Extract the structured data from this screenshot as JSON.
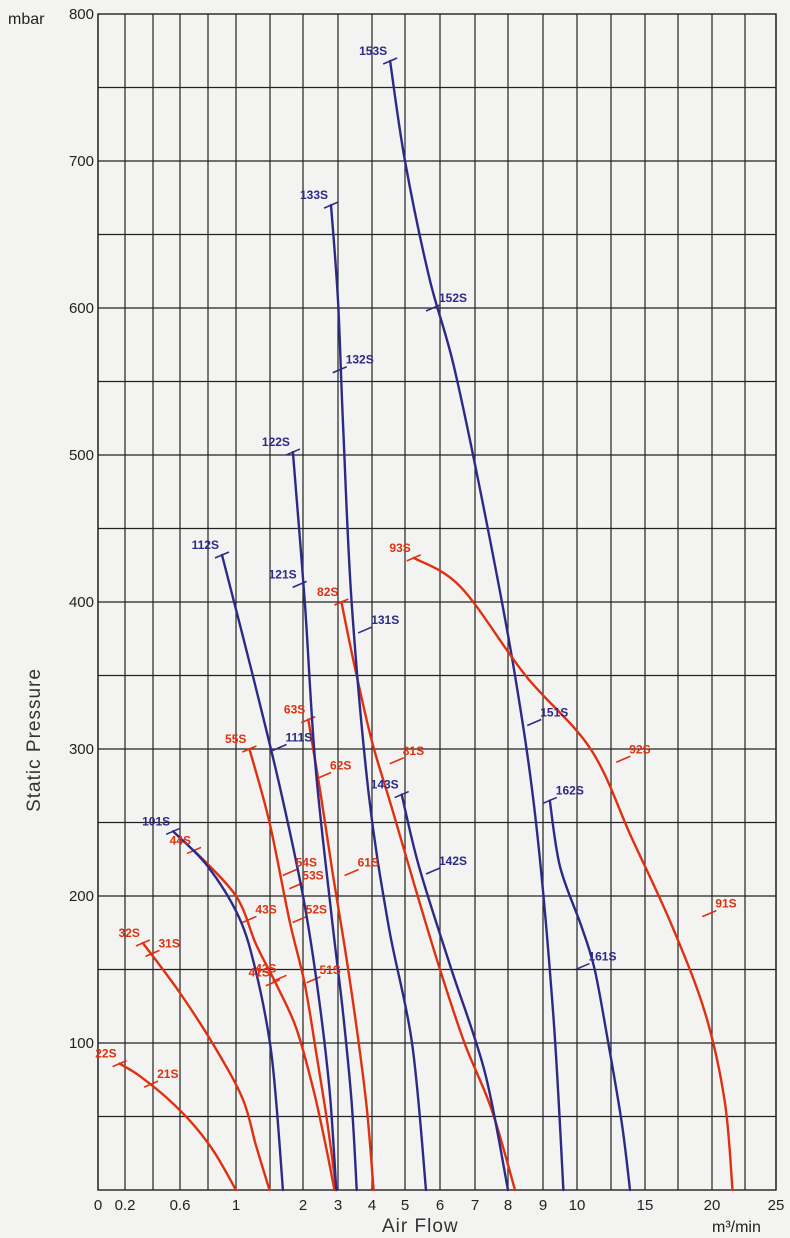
{
  "chart_data": {
    "type": "line",
    "title": "",
    "xlabel": "Air Flow",
    "ylabel": "Static Pressure",
    "y_unit": "mbar",
    "x_unit": "m³/min",
    "ylim": [
      0,
      800
    ],
    "x_scale": "piecewise",
    "x_ticks": [
      "0",
      "0.2",
      "0.6",
      "1",
      "2",
      "3",
      "4",
      "5",
      "6",
      "7",
      "8",
      "9",
      "10",
      "15",
      "20",
      "25"
    ],
    "y_ticks": [
      "100",
      "200",
      "300",
      "400",
      "500",
      "600",
      "700",
      "800"
    ],
    "grid": true,
    "colors": {
      "blue_series": "#2c2a86",
      "red_series": "#e03010",
      "grid": "#222222",
      "background": "#f3f3f1"
    },
    "series": [
      {
        "name": "22S",
        "color": "red",
        "points": [
          [
            0.16,
            86
          ],
          [
            0.3,
            78
          ],
          [
            0.5,
            63
          ],
          [
            0.7,
            44
          ],
          [
            0.85,
            25
          ],
          [
            1.0,
            0
          ]
        ]
      },
      {
        "name": "21S",
        "color": "red",
        "points": [
          [
            0.39,
            72
          ]
        ]
      },
      {
        "name": "32S",
        "color": "red",
        "points": [
          [
            0.33,
            168
          ],
          [
            0.6,
            134
          ],
          [
            0.85,
            97
          ],
          [
            1.1,
            62
          ],
          [
            1.3,
            30
          ],
          [
            1.5,
            0
          ]
        ]
      },
      {
        "name": "31S",
        "color": "red",
        "points": [
          [
            0.4,
            161
          ]
        ]
      },
      {
        "name": "44S",
        "color": "red",
        "points": [
          [
            0.7,
            231
          ],
          [
            1.0,
            200
          ],
          [
            1.3,
            167
          ],
          [
            1.6,
            140
          ],
          [
            1.9,
            110
          ],
          [
            2.3,
            68
          ],
          [
            2.65,
            30
          ],
          [
            2.9,
            0
          ]
        ]
      },
      {
        "name": "43S",
        "color": "red",
        "points": [
          [
            1.2,
            184
          ]
        ]
      },
      {
        "name": "42S",
        "color": "red",
        "points": [
          [
            1.65,
            144
          ]
        ]
      },
      {
        "name": "41S",
        "color": "red",
        "points": [
          [
            1.55,
            141
          ]
        ]
      },
      {
        "name": "101S",
        "color": "blue",
        "points": [
          [
            0.55,
            244
          ],
          [
            0.8,
            220
          ],
          [
            1.05,
            185
          ],
          [
            1.3,
            148
          ],
          [
            1.5,
            102
          ],
          [
            1.6,
            60
          ],
          [
            1.7,
            0
          ]
        ]
      },
      {
        "name": "55S",
        "color": "red",
        "points": [
          [
            1.2,
            300
          ],
          [
            1.5,
            250
          ],
          [
            1.8,
            183
          ],
          [
            2.05,
            140
          ],
          [
            2.4,
            90
          ],
          [
            2.7,
            45
          ],
          [
            2.95,
            0
          ]
        ]
      },
      {
        "name": "54S",
        "color": "red",
        "points": [
          [
            1.8,
            216
          ]
        ]
      },
      {
        "name": "53S",
        "color": "red",
        "points": [
          [
            1.9,
            207
          ]
        ]
      },
      {
        "name": "52S",
        "color": "red",
        "points": [
          [
            1.95,
            184
          ]
        ]
      },
      {
        "name": "51S",
        "color": "red",
        "points": [
          [
            2.3,
            143
          ]
        ]
      },
      {
        "name": "112S",
        "color": "blue",
        "points": [
          [
            0.9,
            432
          ],
          [
            1.25,
            350
          ],
          [
            1.65,
            275
          ],
          [
            2.0,
            200
          ],
          [
            2.4,
            140
          ],
          [
            2.75,
            70
          ],
          [
            2.95,
            0
          ]
        ]
      },
      {
        "name": "111S",
        "color": "blue",
        "points": [
          [
            1.65,
            301
          ]
        ]
      },
      {
        "name": "63S",
        "color": "red",
        "points": [
          [
            2.15,
            320
          ],
          [
            2.5,
            270
          ],
          [
            2.85,
            215
          ],
          [
            3.2,
            165
          ],
          [
            3.55,
            110
          ],
          [
            3.85,
            55
          ],
          [
            4.05,
            0
          ]
        ]
      },
      {
        "name": "62S",
        "color": "red",
        "points": [
          [
            2.6,
            282
          ]
        ]
      },
      {
        "name": "61S",
        "color": "red",
        "points": [
          [
            3.4,
            216
          ]
        ]
      },
      {
        "name": "122S",
        "color": "blue",
        "points": [
          [
            1.85,
            502
          ],
          [
            2.05,
            400
          ],
          [
            2.35,
            290
          ],
          [
            2.8,
            190
          ],
          [
            3.15,
            120
          ],
          [
            3.4,
            60
          ],
          [
            3.55,
            0
          ]
        ]
      },
      {
        "name": "121S",
        "color": "blue",
        "points": [
          [
            1.95,
            412
          ]
        ]
      },
      {
        "name": "82S",
        "color": "red",
        "points": [
          [
            3.1,
            400
          ],
          [
            3.5,
            355
          ],
          [
            4.0,
            305
          ],
          [
            4.6,
            260
          ],
          [
            5.3,
            205
          ],
          [
            6.0,
            150
          ],
          [
            6.7,
            100
          ],
          [
            7.5,
            55
          ],
          [
            8.2,
            0
          ]
        ]
      },
      {
        "name": "81S",
        "color": "red",
        "points": [
          [
            4.75,
            292
          ]
        ]
      },
      {
        "name": "133S",
        "color": "blue",
        "points": [
          [
            2.8,
            670
          ],
          [
            3.0,
            605
          ],
          [
            3.15,
            520
          ],
          [
            3.4,
            400
          ],
          [
            3.9,
            270
          ],
          [
            4.5,
            180
          ],
          [
            5.2,
            100
          ],
          [
            5.6,
            0
          ]
        ]
      },
      {
        "name": "132S",
        "color": "blue",
        "points": [
          [
            3.05,
            558
          ]
        ]
      },
      {
        "name": "131S",
        "color": "blue",
        "points": [
          [
            3.8,
            381
          ]
        ]
      },
      {
        "name": "143S",
        "color": "blue",
        "points": [
          [
            4.9,
            269
          ],
          [
            5.4,
            220
          ],
          [
            6.3,
            152
          ],
          [
            7.3,
            80
          ],
          [
            8.0,
            0
          ]
        ]
      },
      {
        "name": "142S",
        "color": "blue",
        "points": [
          [
            5.8,
            217
          ]
        ]
      },
      {
        "name": "153S",
        "color": "blue",
        "points": [
          [
            4.55,
            768
          ],
          [
            5.0,
            700
          ],
          [
            5.7,
            620
          ],
          [
            6.4,
            560
          ],
          [
            7.3,
            460
          ],
          [
            8.2,
            350
          ],
          [
            8.8,
            250
          ],
          [
            9.3,
            120
          ],
          [
            9.6,
            0
          ]
        ]
      },
      {
        "name": "152S",
        "color": "blue",
        "points": [
          [
            5.8,
            600
          ]
        ]
      },
      {
        "name": "151S",
        "color": "blue",
        "points": [
          [
            8.75,
            318
          ]
        ]
      },
      {
        "name": "93S",
        "color": "red",
        "points": [
          [
            5.25,
            430
          ],
          [
            6.6,
            410
          ],
          [
            8.5,
            350
          ],
          [
            11.0,
            300
          ],
          [
            14.0,
            240
          ],
          [
            17.0,
            180
          ],
          [
            19.5,
            120
          ],
          [
            21.0,
            60
          ],
          [
            21.6,
            0
          ]
        ]
      },
      {
        "name": "92S",
        "color": "red",
        "points": [
          [
            13.4,
            293
          ]
        ]
      },
      {
        "name": "91S",
        "color": "red",
        "points": [
          [
            19.8,
            188
          ]
        ]
      },
      {
        "name": "162S",
        "color": "blue",
        "points": [
          [
            9.2,
            265
          ],
          [
            9.5,
            220
          ],
          [
            10.3,
            180
          ],
          [
            11.3,
            150
          ],
          [
            12.3,
            100
          ],
          [
            13.3,
            45
          ],
          [
            13.9,
            0
          ]
        ]
      },
      {
        "name": "161S",
        "color": "blue",
        "points": [
          [
            10.4,
            152
          ]
        ]
      }
    ],
    "curves_note_free": true,
    "label_positions": {
      "22S": "left",
      "21S": "right",
      "32S": "left",
      "31S": "right",
      "44S": "left",
      "43S": "right",
      "42S": "left",
      "41S": "left",
      "101S": "left",
      "55S": "left",
      "54S": "right",
      "53S": "right",
      "52S": "right",
      "51S": "right",
      "112S": "left",
      "111S": "right",
      "63S": "left",
      "62S": "right",
      "61S": "right",
      "122S": "left",
      "121S": "left",
      "82S": "left",
      "81S": "right",
      "133S": "left",
      "132S": "right",
      "131S": "right",
      "143S": "left",
      "142S": "right",
      "153S": "left",
      "152S": "right",
      "151S": "right",
      "93S": "left",
      "92S": "right",
      "91S": "right",
      "162S": "right",
      "161S": "right"
    }
  }
}
